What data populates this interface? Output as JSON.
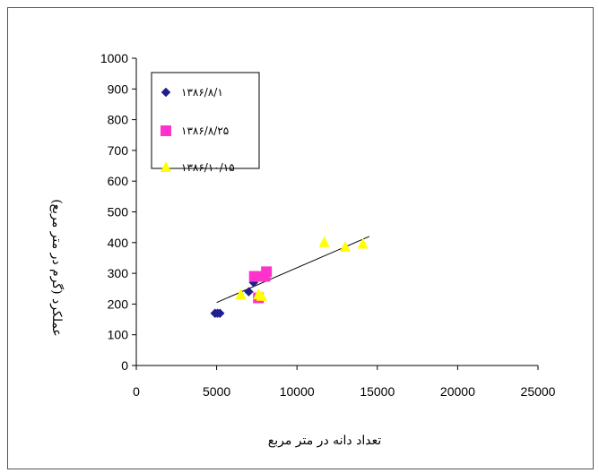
{
  "chart_data": {
    "type": "scatter",
    "title": "",
    "xlabel": "تعداد دانه در متر مربع",
    "ylabel": "عملکرد (گرم در متر مربع)",
    "xlim": [
      0,
      25000
    ],
    "ylim": [
      0,
      1000
    ],
    "x_ticks": [
      0,
      5000,
      10000,
      15000,
      20000,
      25000
    ],
    "y_ticks": [
      0,
      100,
      200,
      300,
      400,
      500,
      600,
      700,
      800,
      900,
      1000
    ],
    "legend_position": "top-left",
    "grid": false,
    "series": [
      {
        "name": "۱۳۸۶/۸/۱",
        "marker": "diamond",
        "color": "#1f1f8f",
        "points": [
          [
            4900,
            170
          ],
          [
            5050,
            170
          ],
          [
            5200,
            170
          ],
          [
            7000,
            240
          ],
          [
            7300,
            270
          ]
        ]
      },
      {
        "name": "۱۳۸۶/۸/۲۵",
        "marker": "square",
        "color": "#ff33cc",
        "points": [
          [
            7350,
            290
          ],
          [
            7600,
            220
          ],
          [
            8000,
            290
          ],
          [
            8100,
            305
          ]
        ]
      },
      {
        "name": "۱۳۸۶/۱۰/۱۵",
        "marker": "triangle",
        "color": "#ffff00",
        "points": [
          [
            6500,
            230
          ],
          [
            7600,
            230
          ],
          [
            7800,
            225
          ],
          [
            11700,
            400
          ],
          [
            13000,
            385
          ],
          [
            14100,
            395
          ]
        ]
      }
    ],
    "trendline": {
      "x1": 5000,
      "y1": 205,
      "x2": 14500,
      "y2": 420
    }
  }
}
